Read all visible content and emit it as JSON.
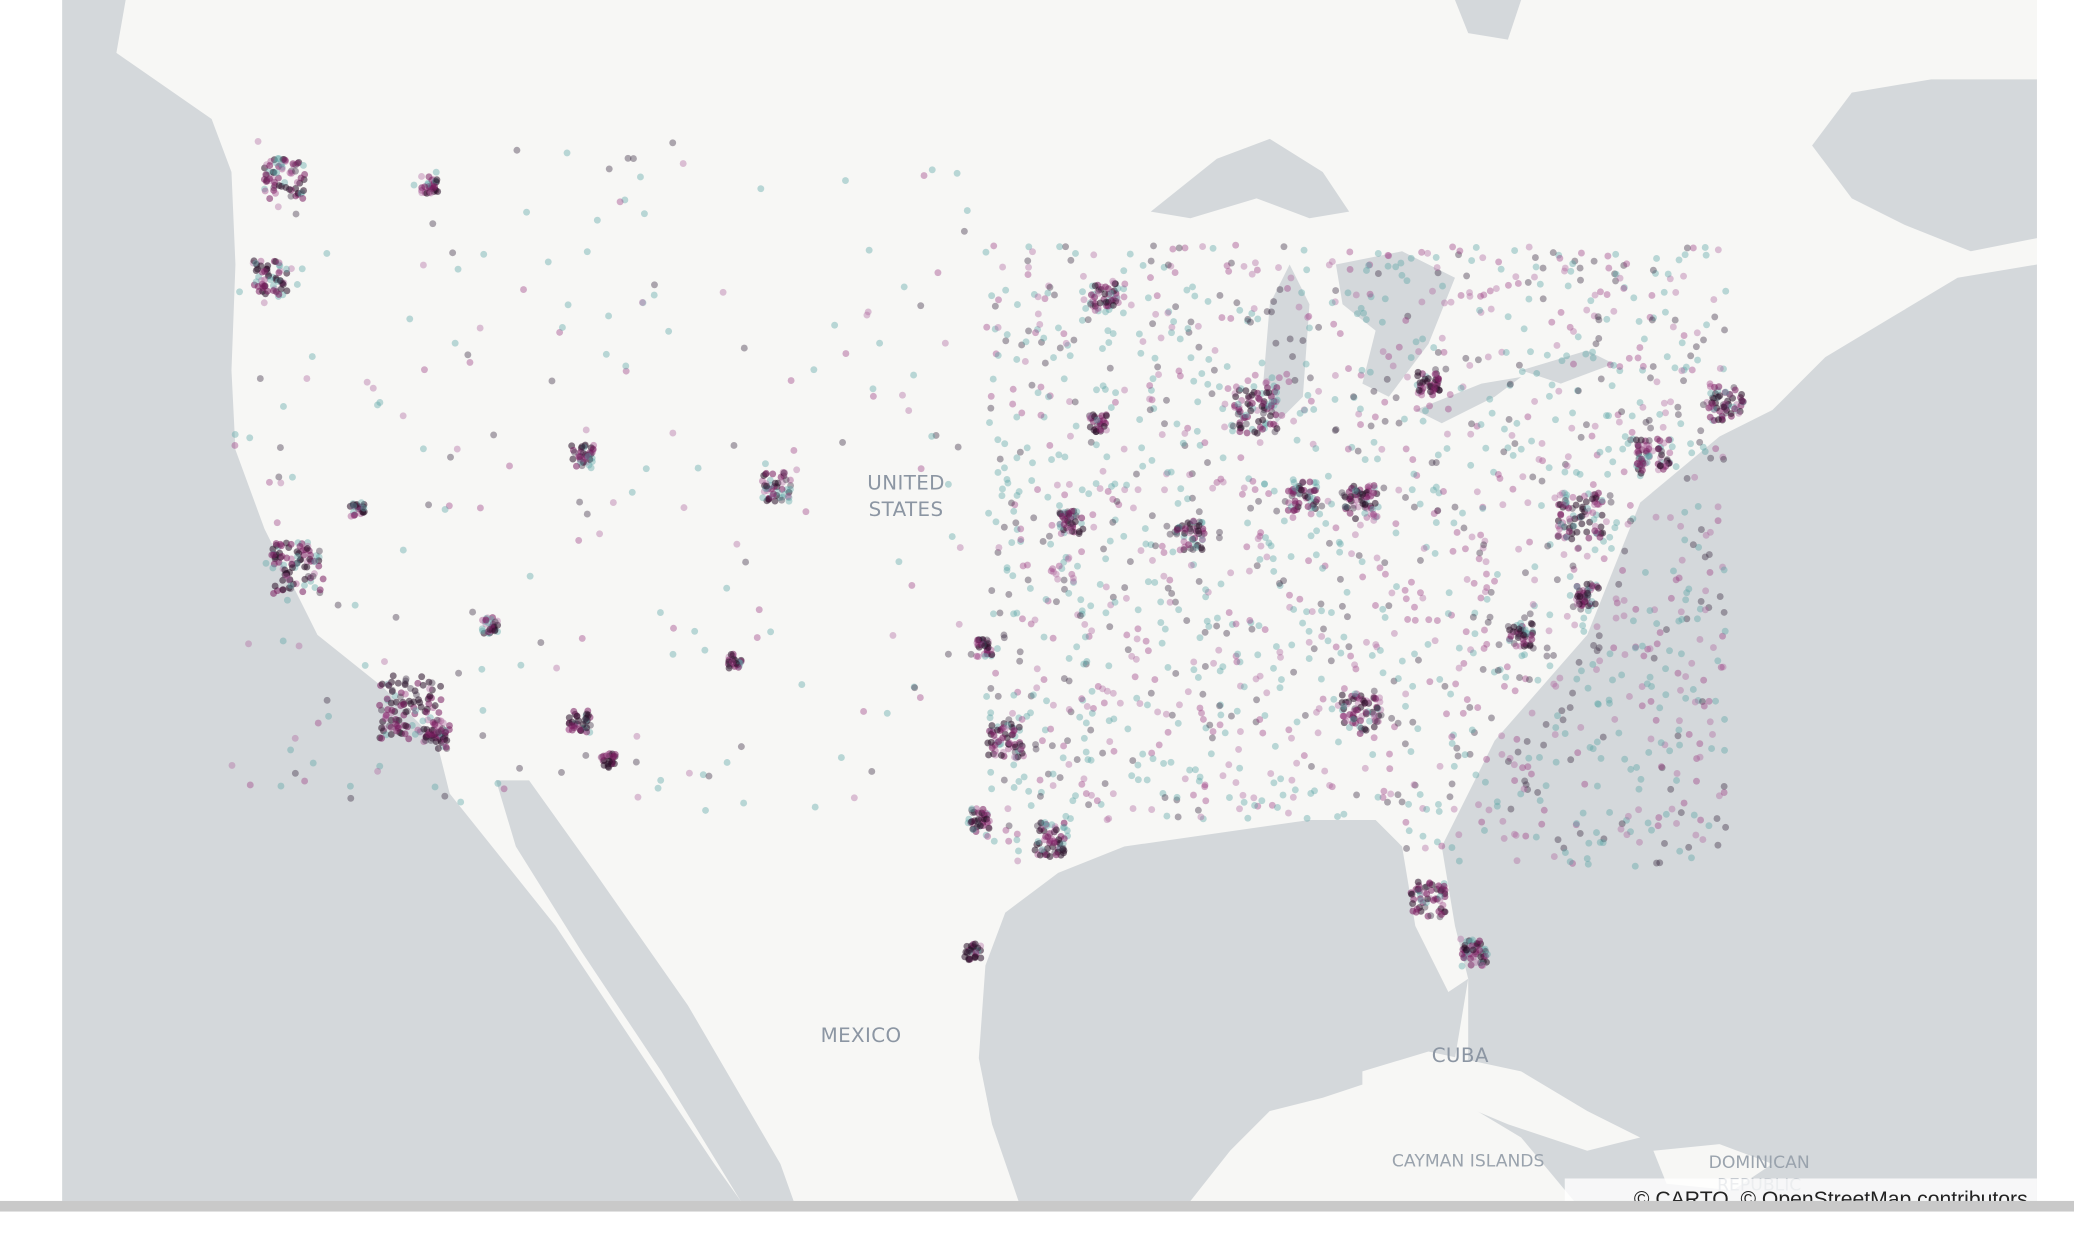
{
  "map": {
    "labels": {
      "united_states": [
        "UNITED",
        "STATES"
      ],
      "mexico": "MEXICO",
      "cuba": "CUBA",
      "cayman_islands": "CAYMAN ISLANDS",
      "dominican_republic": [
        "DOMINICAN",
        "REPUBLIC"
      ]
    },
    "attribution": "© CARTO, © OpenStreetMap contributors"
  }
}
